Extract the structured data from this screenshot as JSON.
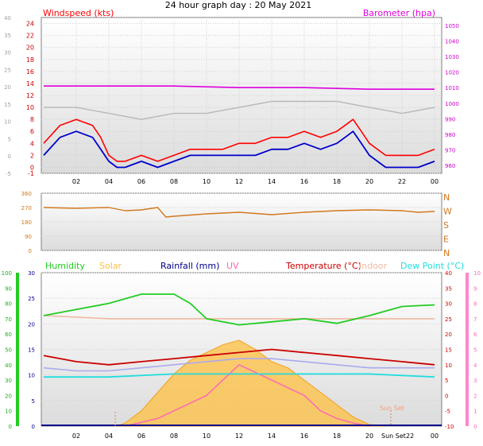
{
  "title": "24 hour graph day : 20 May 2021",
  "colors": {
    "windspeed": "#ff0000",
    "windavg": "#0000cc",
    "gust": "#b8b8b8",
    "barometer": "#dd00dd",
    "direction": "#d2781e",
    "humidity": "#22cc22",
    "solar": "#ffc040",
    "rainfall": "#00008b",
    "uv": "#ff69b4",
    "temperature": "#cc0000",
    "indoor": "#f0b9a0",
    "dewpoint": "#22dddd",
    "feels": "#aaaaee",
    "plot_bg_top": "#ffffff",
    "plot_bg_bottom": "#dcdcdc"
  },
  "x_ticks": [
    "02",
    "04",
    "06",
    "08",
    "10",
    "12",
    "14",
    "16",
    "18",
    "20",
    "22",
    "00"
  ],
  "sunset_label": "Sun Set",
  "chart_data": [
    {
      "type": "line",
      "panel": "wind",
      "ylabel": "Windspeed (kts)",
      "y2label": "Barometer (hpa)",
      "ylim": [
        -1,
        25
      ],
      "y2lim": [
        955,
        1055
      ],
      "left_ticks": [
        -1,
        0,
        2,
        4,
        6,
        8,
        10,
        12,
        14,
        16,
        18,
        20,
        22,
        24
      ],
      "outer_ticks": [
        -5,
        0,
        5,
        10,
        15,
        20,
        25,
        30,
        35,
        40
      ],
      "right_ticks": [
        960,
        970,
        980,
        990,
        1000,
        1010,
        1020,
        1030,
        1040,
        1050
      ],
      "series": [
        {
          "name": "Windspeed",
          "x": [
            0,
            1,
            2,
            3,
            3.5,
            4,
            4.5,
            5,
            6,
            7,
            8,
            9,
            10,
            11,
            12,
            13,
            14,
            15,
            16,
            17,
            18,
            18.5,
            19,
            19.5,
            20,
            21,
            22,
            23,
            24
          ],
          "y": [
            4,
            7,
            8,
            7,
            5,
            2,
            1,
            1,
            2,
            1,
            2,
            3,
            3,
            3,
            4,
            4,
            5,
            5,
            6,
            5,
            6,
            7,
            8,
            6,
            4,
            2,
            2,
            2,
            3
          ]
        },
        {
          "name": "Wind average",
          "x": [
            0,
            1,
            2,
            3,
            3.5,
            4,
            4.5,
            5,
            6,
            7,
            8,
            9,
            10,
            11,
            12,
            13,
            14,
            15,
            16,
            17,
            18,
            18.5,
            19,
            19.5,
            20,
            21,
            22,
            23,
            24
          ],
          "y": [
            2,
            5,
            6,
            5,
            3,
            1,
            0,
            0,
            1,
            0,
            1,
            2,
            2,
            2,
            2,
            2,
            3,
            3,
            4,
            3,
            4,
            5,
            6,
            4,
            2,
            0,
            0,
            0,
            1
          ]
        },
        {
          "name": "Gust",
          "x": [
            0,
            2,
            4,
            6,
            8,
            10,
            12,
            14,
            16,
            18,
            20,
            22,
            24
          ],
          "y": [
            10,
            10,
            9,
            8,
            9,
            9,
            10,
            11,
            11,
            11,
            10,
            9,
            10
          ]
        },
        {
          "name": "Barometer",
          "x": [
            0,
            4,
            8,
            12,
            16,
            20,
            24
          ],
          "y": [
            1011,
            1011,
            1011,
            1010,
            1010,
            1009,
            1009
          ]
        }
      ]
    },
    {
      "type": "scatter",
      "panel": "direction",
      "ylim": [
        0,
        360
      ],
      "left_ticks": [
        0,
        90,
        180,
        270,
        360
      ],
      "right_labels": [
        "N",
        "W",
        "S",
        "E",
        "N"
      ],
      "series": [
        {
          "name": "Wind direction",
          "x": [
            0,
            2,
            4,
            5,
            6,
            7,
            7.5,
            8,
            10,
            12,
            14,
            16,
            18,
            20,
            22,
            23,
            24
          ],
          "y": [
            270,
            265,
            270,
            250,
            255,
            270,
            210,
            215,
            230,
            240,
            225,
            240,
            250,
            255,
            250,
            240,
            245
          ]
        }
      ]
    },
    {
      "type": "line",
      "panel": "weather",
      "legend": [
        "Humidity",
        "Solar",
        "Rainfall (mm)",
        "UV",
        "Temperature (°C)",
        "Indoor",
        "Dew Point (°C)"
      ],
      "rain_ticks": [
        0,
        5,
        10,
        15,
        20,
        25,
        30
      ],
      "humidity_ticks": [
        0,
        10,
        20,
        30,
        40,
        50,
        60,
        70,
        80,
        90,
        100
      ],
      "temp_ticks": [
        -10,
        -5,
        0,
        5,
        10,
        15,
        20,
        25,
        30,
        35,
        40
      ],
      "uv_ticks": [
        0,
        1,
        2,
        3,
        4,
        5,
        6,
        7,
        8,
        9,
        10
      ],
      "humidity_range": [
        0,
        100
      ],
      "temp_range": [
        -10,
        40
      ],
      "uv_range": [
        0,
        10
      ],
      "solar_range": [
        0,
        1000
      ],
      "series": [
        {
          "name": "Humidity",
          "x": [
            0,
            2,
            4,
            6,
            8,
            9,
            10,
            12,
            14,
            16,
            18,
            20,
            22,
            24
          ],
          "y": [
            72,
            76,
            80,
            86,
            86,
            80,
            70,
            66,
            68,
            70,
            67,
            72,
            78,
            79
          ]
        },
        {
          "name": "Temperature",
          "x": [
            0,
            2,
            4,
            6,
            8,
            10,
            12,
            14,
            16,
            18,
            20,
            22,
            24
          ],
          "y": [
            13,
            11,
            10,
            11,
            12,
            13,
            14,
            15,
            14,
            13,
            12,
            11,
            10
          ]
        },
        {
          "name": "Indoor",
          "x": [
            0,
            4,
            8,
            12,
            16,
            20,
            24
          ],
          "y": [
            26,
            25,
            25,
            25,
            25,
            25,
            25
          ]
        },
        {
          "name": "Dew Point",
          "x": [
            0,
            4,
            8,
            12,
            16,
            20,
            24
          ],
          "y": [
            6,
            6,
            7,
            7,
            7,
            7,
            6
          ]
        },
        {
          "name": "Feels like",
          "x": [
            0,
            2,
            4,
            6,
            8,
            10,
            12,
            14,
            16,
            18,
            20,
            22,
            24
          ],
          "y": [
            9,
            8,
            8,
            9,
            10,
            11,
            12,
            12,
            11,
            10,
            9,
            9,
            9
          ]
        },
        {
          "name": "Solar",
          "x": [
            4.5,
            5,
            6,
            7,
            8,
            9,
            10,
            11,
            12,
            13,
            14,
            15,
            16,
            17,
            18,
            19,
            20,
            21
          ],
          "y": [
            0,
            20,
            100,
            220,
            340,
            430,
            480,
            530,
            560,
            500,
            420,
            380,
            300,
            220,
            140,
            60,
            10,
            0
          ]
        },
        {
          "name": "UV",
          "x": [
            5,
            7,
            8,
            9,
            10,
            11,
            12,
            13,
            14,
            15,
            16,
            17,
            18,
            19,
            20
          ],
          "y": [
            0,
            0.5,
            1,
            1.5,
            2,
            3,
            4,
            3.5,
            3,
            2.5,
            2,
            1,
            0.5,
            0.2,
            0
          ]
        }
      ]
    }
  ]
}
